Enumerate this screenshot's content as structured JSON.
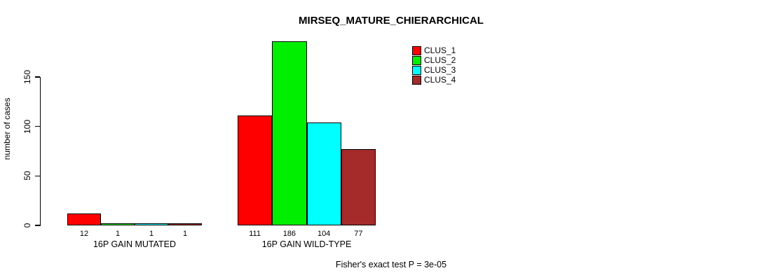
{
  "chart_data": {
    "type": "bar",
    "title": "MIRSEQ_MATURE_CHIERARCHICAL",
    "ylabel": "number of cases",
    "xlabel": "",
    "yticks": [
      0,
      50,
      100,
      150
    ],
    "ylim": [
      0,
      186
    ],
    "grid": false,
    "legend_position": "top-right",
    "categories": [
      "16P GAIN MUTATED",
      "16P GAIN WILD-TYPE"
    ],
    "series": [
      {
        "name": "CLUS_1",
        "color": "#ff0000",
        "values": [
          12,
          111
        ]
      },
      {
        "name": "CLUS_2",
        "color": "#00ee00",
        "values": [
          1,
          186
        ]
      },
      {
        "name": "CLUS_3",
        "color": "#00ffff",
        "values": [
          1,
          104
        ]
      },
      {
        "name": "CLUS_4",
        "color": "#a52a2a",
        "values": [
          1,
          77
        ]
      }
    ],
    "bar_value_labels": [
      [
        "12",
        "1",
        "1",
        "1"
      ],
      [
        "111",
        "186",
        "104",
        "77"
      ]
    ],
    "annotation": "Fisher's exact test P = 3e-05"
  }
}
